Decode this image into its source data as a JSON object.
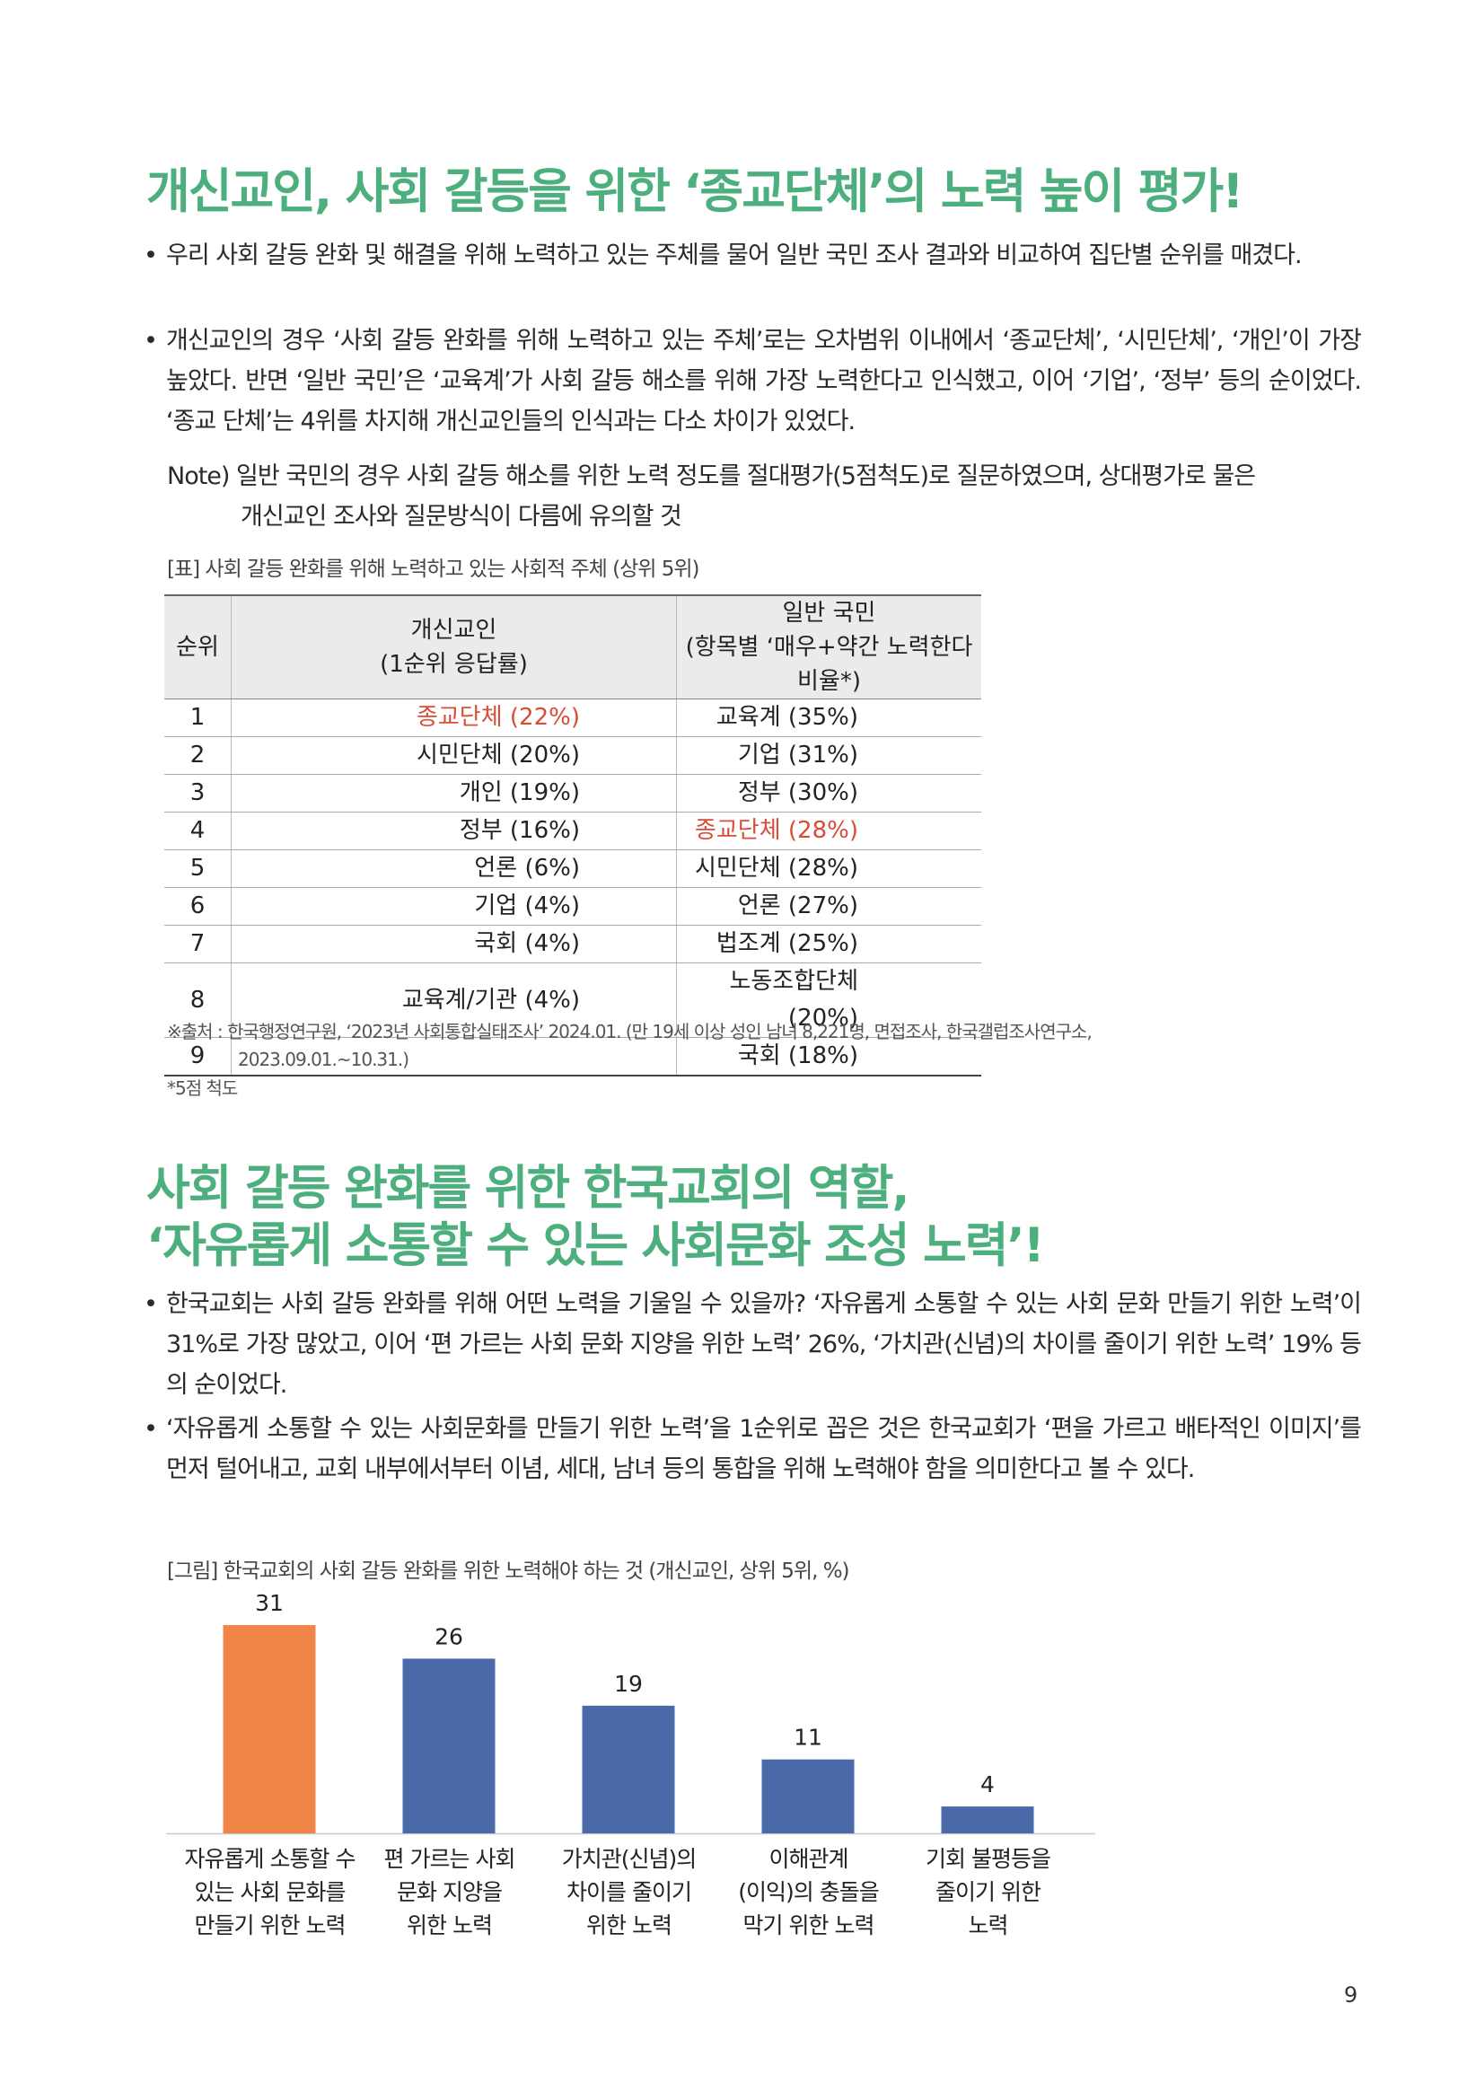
{
  "section1": {
    "title": "개신교인, 사회 갈등을 위한 ‘종교단체’의 노력 높이 평가!",
    "bullets": [
      "우리 사회 갈등 완화 및 해결을 위해 노력하고 있는 주체를 물어 일반 국민 조사 결과와 비교하여 집단별 순위를 매겼다.",
      "개신교인의 경우 ‘사회 갈등 완화를 위해 노력하고 있는 주체’로는 오차범위 이내에서 ‘종교단체’, ‘시민단체’, ‘개인’이 가장 높았다. 반면 ‘일반 국민’은 ‘교육계’가 사회 갈등 해소를 위해 가장 노력한다고 인식했고, 이어 ‘기업’, ‘정부’ 등의 순이었다. ‘종교 단체’는 4위를 차지해 개신교인들의 인식과는 다소 차이가 있었다."
    ],
    "note_line1": "Note) 일반 국민의 경우 사회 갈등 해소를 위한 노력 정도를 절대평가(5점척도)로 질문하였으며, 상대평가로 물은",
    "note_line2": "개신교인 조사와 질문방식이 다름에 유의할 것"
  },
  "table": {
    "caption": "[표] 사회 갈등 완화를 위해 노력하고 있는 사회적 주체 (상위 5위)",
    "header": {
      "rank": "순위",
      "col_a_line1": "개신교인",
      "col_a_line2": "(1순위 응답률)",
      "col_b_line1": "일반 국민",
      "col_b_line2": "(항목별 ‘매우+약간 노력한다 비율*)"
    },
    "rows": [
      {
        "rank": "1",
        "a": "종교단체 (22%)",
        "b": "교육계 (35%)"
      },
      {
        "rank": "2",
        "a": "시민단체 (20%)",
        "b": "기업 (31%)"
      },
      {
        "rank": "3",
        "a": "개인 (19%)",
        "b": "정부 (30%)"
      },
      {
        "rank": "4",
        "a": "정부 (16%)",
        "b": "종교단체 (28%)"
      },
      {
        "rank": "5",
        "a": "언론 (6%)",
        "b": "시민단체 (28%)"
      },
      {
        "rank": "6",
        "a": "기업 (4%)",
        "b": "언론 (27%)"
      },
      {
        "rank": "7",
        "a": "국회 (4%)",
        "b": "법조계 (25%)"
      },
      {
        "rank": "8",
        "a": "교육계/기관 (4%)",
        "b": "노동조합단체 (20%)"
      },
      {
        "rank": "9",
        "a": "",
        "b": "국회 (18%)"
      }
    ],
    "highlight_color": "#d94c36",
    "source_line1": "※출처 : 한국행정연구원, ‘2023년 사회통합실태조사’ 2024.01. (만 19세 이상 성인 남녀 8,221명, 면접조사, 한국갤럽조사연구소,",
    "source_line2": "2023.09.01.~10.31.)",
    "footnote": "*5점 척도"
  },
  "section2": {
    "title_line1": "사회 갈등 완화를 위한 한국교회의 역할,",
    "title_line2": "‘자유롭게 소통할 수 있는 사회문화 조성 노력’!",
    "bullets": [
      "한국교회는 사회 갈등 완화를 위해 어떤 노력을 기울일 수 있을까? ‘자유롭게 소통할 수 있는 사회 문화 만들기 위한 노력’이 31%로 가장 많았고, 이어 ‘편 가르는 사회 문화 지양을 위한 노력’ 26%, ‘가치관(신념)의 차이를 줄이기 위한 노력’ 19% 등의 순이었다.",
      "‘자유롭게 소통할 수 있는 사회문화를 만들기 위한 노력’을 1순위로 꼽은 것은 한국교회가 ‘편을 가르고 배타적인 이미지’를 먼저 털어내고, 교회 내부에서부터 이념, 세대, 남녀 등의 통합을 위해 노력해야 함을 의미한다고 볼 수 있다."
    ]
  },
  "figure_caption": "[그림] 한국교회의 사회 갈등 완화를 위한 노력해야 하는 것 (개신교인, 상위 5위, %)",
  "chart_data": {
    "type": "bar",
    "categories": [
      "자유롭게 소통할 수 있는 사회 문화를 만들기 위한 노력",
      "편 가르는 사회 문화 지양을 위한 노력",
      "가치관(신념)의 차이를 줄이기 위한 노력",
      "이해관계(이익)의 충돌을 막기 위한 노력",
      "기회 불평등을 줄이기 위한 노력"
    ],
    "category_lines": [
      [
        "자유롭게 소통할 수",
        "있는 사회 문화를",
        "만들기 위한 노력"
      ],
      [
        "편 가르는 사회",
        "문화 지양을",
        "위한 노력"
      ],
      [
        "가치관(신념)의",
        "차이를 줄이기",
        "위한 노력"
      ],
      [
        "이해관계",
        "(이익)의 충돌을",
        "막기 위한 노력"
      ],
      [
        "기회 불평등을",
        "줄이기 위한",
        "노력"
      ]
    ],
    "values": [
      31,
      26,
      19,
      11,
      4
    ],
    "bar_colors": [
      "#f08548",
      "#4a69a8",
      "#4a69a8",
      "#4a69a8",
      "#4a69a8"
    ],
    "ylim": [
      0,
      31
    ],
    "data_labels": true,
    "grid": false,
    "legend": "none"
  },
  "page_number": "9"
}
